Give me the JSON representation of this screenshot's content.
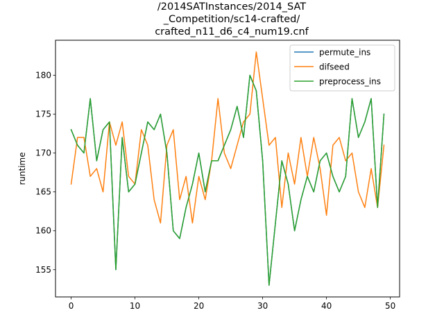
{
  "chart_data": {
    "type": "line",
    "title_lines": [
      "/2014SATInstances/2014_SAT",
      "_Competition/sc14-crafted/",
      "crafted_n11_d6_c4_num19.cnf"
    ],
    "xlabel": "",
    "ylabel": "runtime",
    "xlim": [
      -2.45,
      51.45
    ],
    "ylim": [
      151.5,
      184.5
    ],
    "xticks": [
      0,
      10,
      20,
      30,
      40,
      50
    ],
    "yticks": [
      155,
      160,
      165,
      170,
      175,
      180
    ],
    "legend_position": "top-right",
    "x": [
      0,
      1,
      2,
      3,
      4,
      5,
      6,
      7,
      8,
      9,
      10,
      11,
      12,
      13,
      14,
      15,
      16,
      17,
      18,
      19,
      20,
      21,
      22,
      23,
      24,
      25,
      26,
      27,
      28,
      29,
      30,
      31,
      32,
      33,
      34,
      35,
      36,
      37,
      38,
      39,
      40,
      41,
      42,
      43,
      44,
      45,
      46,
      47,
      48,
      49
    ],
    "series": [
      {
        "name": "permute_ins",
        "color": "#1f77b4",
        "values": [
          173,
          171,
          170,
          177,
          169,
          173,
          174,
          155,
          172,
          165,
          166,
          170,
          174,
          173,
          175,
          170,
          160,
          159,
          163,
          166,
          170,
          165,
          169,
          169,
          171,
          173,
          176,
          172,
          180,
          178,
          169,
          153,
          161,
          169,
          166,
          160,
          164,
          167,
          165,
          169,
          170,
          167,
          165,
          167,
          177,
          172,
          174,
          177,
          163,
          175
        ]
      },
      {
        "name": "difseed",
        "color": "#ff7f0e",
        "values": [
          166,
          172,
          172,
          167,
          168,
          165,
          174,
          171,
          174,
          167,
          166,
          173,
          171,
          164,
          161,
          171,
          173,
          164,
          167,
          161,
          167,
          164,
          169,
          177,
          170,
          168,
          171,
          174,
          175,
          183,
          177,
          171,
          172,
          163,
          170,
          166,
          172,
          167,
          172,
          168,
          162,
          171,
          172,
          169,
          170,
          165,
          163,
          168,
          163,
          171
        ]
      },
      {
        "name": "preprocess_ins",
        "color": "#2ca02c",
        "values": [
          173,
          171,
          170,
          177,
          169,
          173,
          174,
          155,
          172,
          165,
          166,
          170,
          174,
          173,
          175,
          170,
          160,
          159,
          163,
          166,
          170,
          165,
          169,
          169,
          171,
          173,
          176,
          172,
          180,
          178,
          169,
          153,
          161,
          169,
          166,
          160,
          164,
          167,
          165,
          169,
          170,
          167,
          165,
          167,
          177,
          172,
          174,
          177,
          163,
          175
        ]
      }
    ]
  }
}
